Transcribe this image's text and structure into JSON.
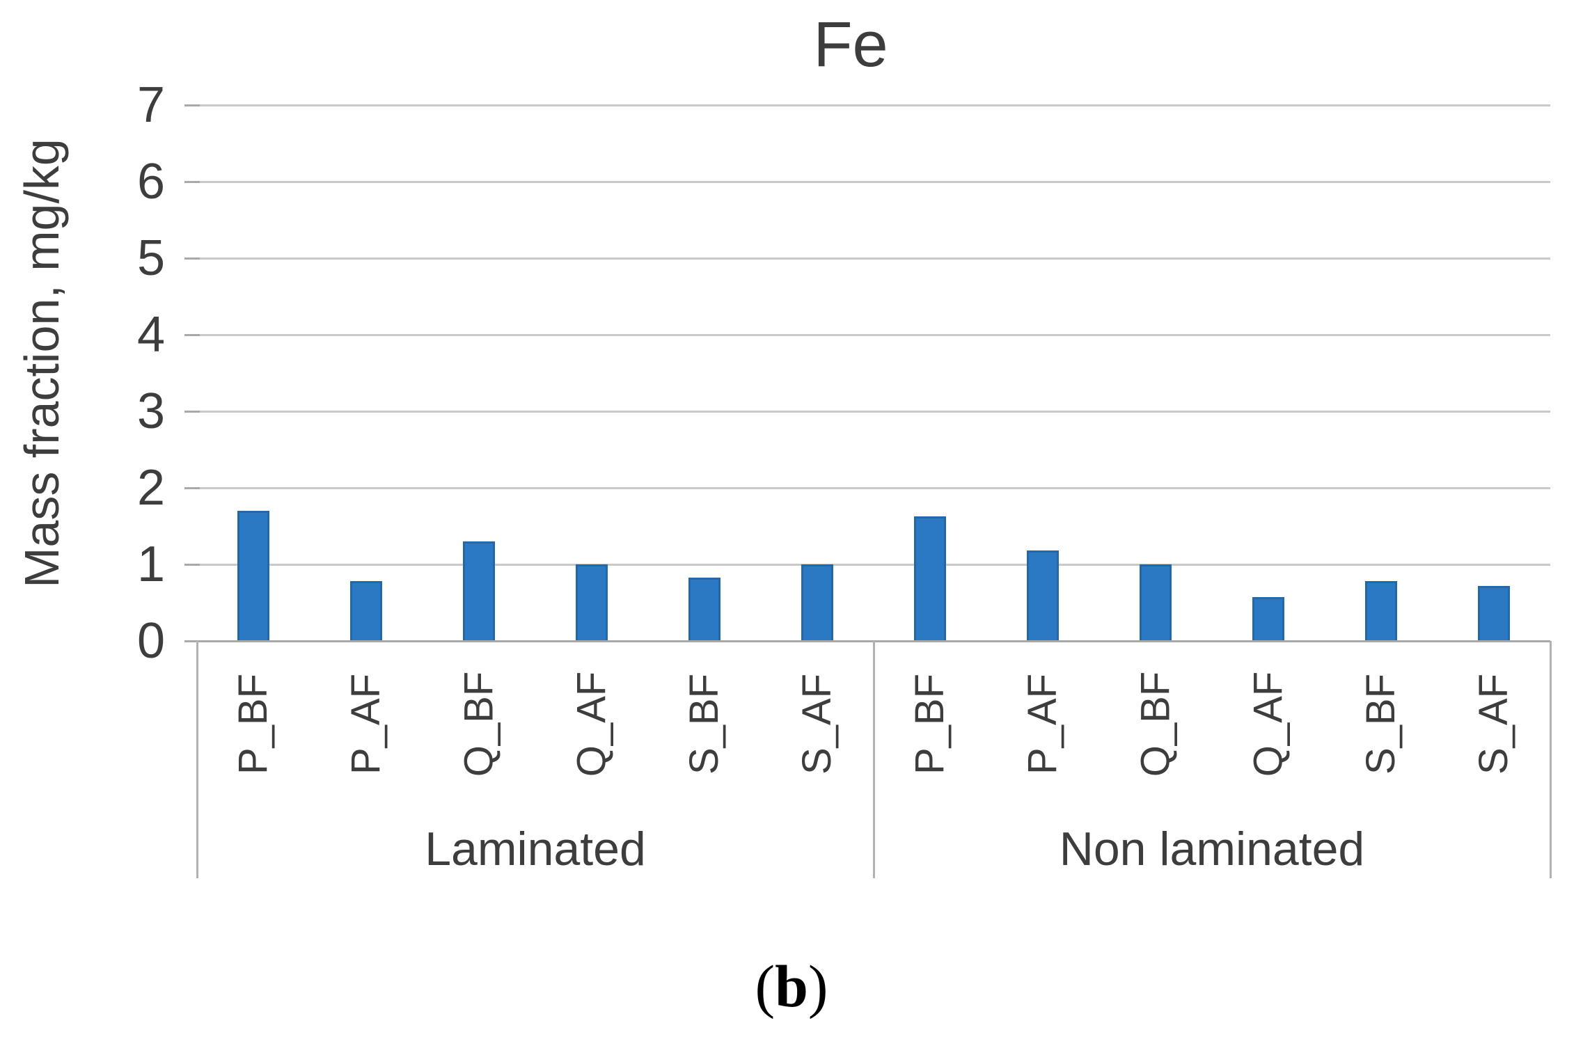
{
  "figure": {
    "panel_label": {
      "open": "(",
      "letter": "b",
      "close": ")"
    }
  },
  "chart_data": {
    "type": "bar",
    "title": "Fe",
    "xlabel": "",
    "ylabel": "Mass fraction, mg/kg",
    "ylim": [
      0,
      7
    ],
    "yticks": [
      0,
      1,
      2,
      3,
      4,
      5,
      6,
      7
    ],
    "grid": true,
    "legend": "none",
    "bar_color": "#2b79c2",
    "bar_edge_color": "#2368ab",
    "groups": [
      {
        "label": "Laminated",
        "categories": [
          "P_BF",
          "P_AF",
          "Q_BF",
          "Q_AF",
          "S_BF",
          "S_AF"
        ],
        "values": [
          1.7,
          0.78,
          1.3,
          1.0,
          0.83,
          1.0
        ]
      },
      {
        "label": "Non laminated",
        "categories": [
          "P_BF",
          "P_AF",
          "Q_BF",
          "Q_AF",
          "S_BF",
          "S_AF"
        ],
        "values": [
          1.63,
          1.18,
          1.0,
          0.57,
          0.78,
          0.72
        ]
      }
    ]
  }
}
